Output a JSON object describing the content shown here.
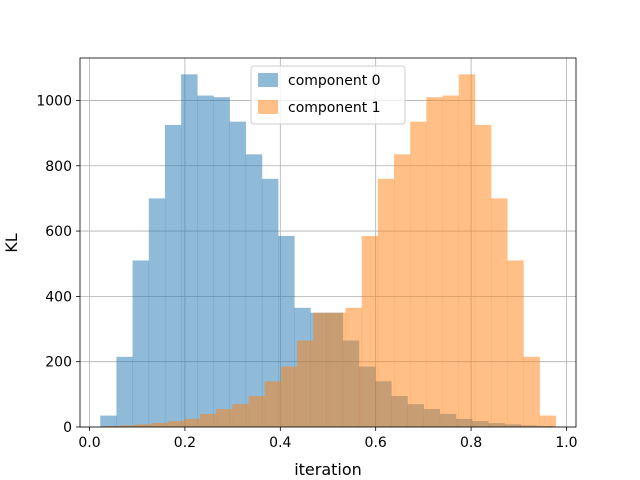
{
  "chart_data": {
    "type": "bar",
    "title": "",
    "xlabel": "iteration",
    "ylabel": "KL",
    "xlim": [
      -0.02,
      1.02
    ],
    "ylim": [
      0,
      1130
    ],
    "xticks": [
      0.0,
      0.2,
      0.4,
      0.6,
      0.8,
      1.0
    ],
    "xtick_labels": [
      "0.0",
      "0.2",
      "0.4",
      "0.6",
      "0.8",
      "1.0"
    ],
    "yticks": [
      0,
      200,
      400,
      600,
      800,
      1000
    ],
    "ytick_labels": [
      "0",
      "200",
      "400",
      "600",
      "800",
      "1000"
    ],
    "grid": true,
    "legend_position": "top-center",
    "bin_edges": [
      0.0225,
      0.0564,
      0.0903,
      0.1242,
      0.1581,
      0.192,
      0.2259,
      0.2598,
      0.2937,
      0.3276,
      0.3615,
      0.3954,
      0.4293,
      0.4632,
      0.4971,
      0.531,
      0.5649,
      0.5988,
      0.6327,
      0.6666,
      0.7005,
      0.7344,
      0.7683,
      0.8022,
      0.8361,
      0.87,
      0.9039,
      0.9378,
      0.9717
    ],
    "series": [
      {
        "name": "component 0",
        "color": "#1f77b4",
        "opacity": 0.5,
        "x_start": 0.0225,
        "values": [
          35,
          215,
          510,
          700,
          925,
          1080,
          1015,
          1010,
          935,
          835,
          760,
          585,
          365,
          350,
          350,
          265,
          185,
          140,
          95,
          70,
          55,
          40,
          25,
          18,
          12,
          8,
          5,
          3
        ]
      },
      {
        "name": "component 1",
        "color": "#ff7f0e",
        "opacity": 0.5,
        "x_start": 0.0283,
        "values": [
          3,
          5,
          8,
          12,
          18,
          25,
          40,
          55,
          70,
          95,
          140,
          185,
          265,
          350,
          350,
          365,
          585,
          760,
          835,
          935,
          1010,
          1015,
          1080,
          925,
          700,
          510,
          215,
          35
        ]
      }
    ]
  }
}
